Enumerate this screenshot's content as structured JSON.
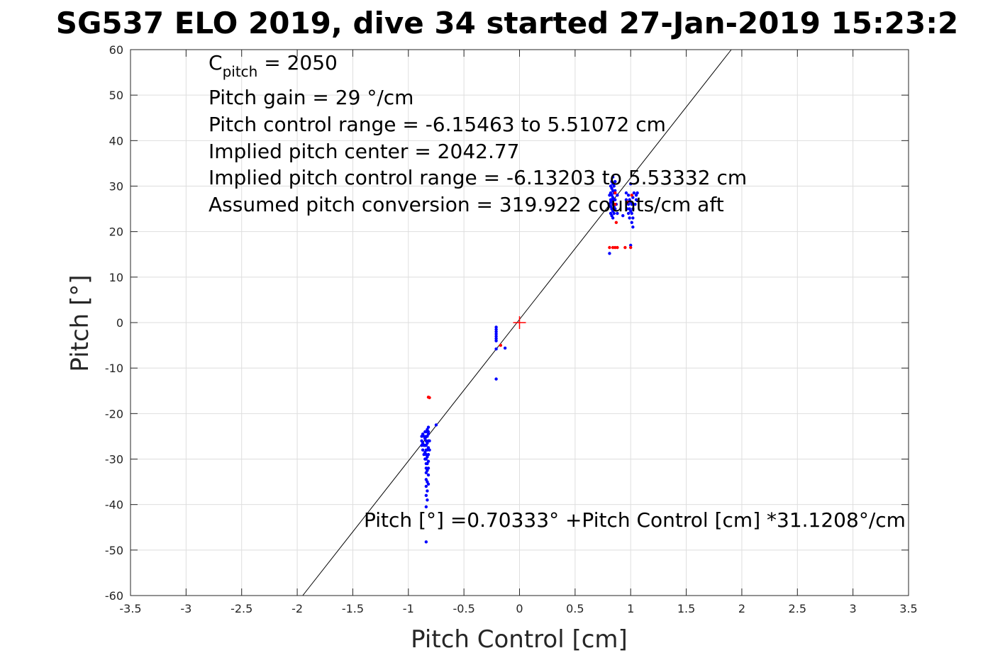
{
  "chart_data": {
    "type": "scatter",
    "title": "SG537 ELO 2019, dive 34 started 27-Jan-2019 15:23:2",
    "xlabel": "Pitch Control [cm]",
    "ylabel": "Pitch [°]",
    "xlim": [
      -3.5,
      3.5
    ],
    "ylim": [
      -60,
      60
    ],
    "x_ticks": [
      -3.5,
      -3,
      -2.5,
      -2,
      -1.5,
      -1,
      -0.5,
      0,
      0.5,
      1,
      1.5,
      2,
      2.5,
      3,
      3.5
    ],
    "x_tick_labels": [
      "-3.5",
      "-3",
      "-2.5",
      "-2",
      "-1.5",
      "-1",
      "-0.5",
      "0",
      "0.5",
      "1",
      "1.5",
      "2",
      "2.5",
      "3",
      "3.5"
    ],
    "y_ticks": [
      -60,
      -50,
      -40,
      -30,
      -20,
      -10,
      0,
      10,
      20,
      30,
      40,
      50,
      60
    ],
    "y_tick_labels": [
      "-60",
      "-50",
      "-40",
      "-30",
      "-20",
      "-10",
      "0",
      "10",
      "20",
      "30",
      "40",
      "50",
      "60"
    ],
    "grid": true,
    "annotations": {
      "c_pitch_base": "C",
      "c_pitch_sub": "pitch",
      "c_pitch_value": " = 2050",
      "pitch_gain": "Pitch gain = 29 °/cm",
      "control_range": "Pitch control range = -6.15463 to 5.51072 cm",
      "implied_center": "Implied pitch center = 2042.77",
      "implied_range": "Implied pitch control range = -6.13203 to 5.53332 cm",
      "assumed_conversion": "Assumed pitch conversion = 319.922 counts/cm aft",
      "fit_equation": "Pitch [°] =0.70333° +Pitch Control [cm] *31.1208°/cm"
    },
    "fit_line": {
      "intercept": 0.70333,
      "slope": 31.1208,
      "color": "#000000"
    },
    "center_marker": {
      "x": 0,
      "y": 0,
      "color": "#ff0000"
    },
    "series": [
      {
        "color": "#0000ff",
        "points": [
          [
            -0.88,
            -25
          ],
          [
            -0.88,
            -26
          ],
          [
            -0.88,
            -27
          ],
          [
            -0.87,
            -24.5
          ],
          [
            -0.87,
            -26.5
          ],
          [
            -0.87,
            -28
          ],
          [
            -0.86,
            -25
          ],
          [
            -0.86,
            -27
          ],
          [
            -0.86,
            -29
          ],
          [
            -0.85,
            -24
          ],
          [
            -0.85,
            -25.5
          ],
          [
            -0.85,
            -27
          ],
          [
            -0.85,
            -28.5
          ],
          [
            -0.85,
            -30
          ],
          [
            -0.84,
            -24
          ],
          [
            -0.84,
            -25
          ],
          [
            -0.84,
            -26
          ],
          [
            -0.84,
            -27
          ],
          [
            -0.84,
            -28
          ],
          [
            -0.84,
            -29
          ],
          [
            -0.84,
            -30
          ],
          [
            -0.84,
            -31
          ],
          [
            -0.84,
            -32
          ],
          [
            -0.84,
            -33
          ],
          [
            -0.84,
            -34.5
          ],
          [
            -0.84,
            -36
          ],
          [
            -0.84,
            -38
          ],
          [
            -0.84,
            -40.5
          ],
          [
            -0.84,
            -48.2
          ],
          [
            -0.83,
            -23.5
          ],
          [
            -0.83,
            -25
          ],
          [
            -0.83,
            -26.5
          ],
          [
            -0.83,
            -28
          ],
          [
            -0.83,
            -29.5
          ],
          [
            -0.83,
            -31
          ],
          [
            -0.83,
            -32.5
          ],
          [
            -0.83,
            -35
          ],
          [
            -0.83,
            -37
          ],
          [
            -0.83,
            -39
          ],
          [
            -0.82,
            -23
          ],
          [
            -0.82,
            -24.5
          ],
          [
            -0.82,
            -26
          ],
          [
            -0.82,
            -27.5
          ],
          [
            -0.82,
            -29
          ],
          [
            -0.82,
            -30.5
          ],
          [
            -0.82,
            -32
          ],
          [
            -0.82,
            -33.5
          ],
          [
            -0.82,
            -35.5
          ],
          [
            -0.82,
            -24
          ],
          [
            -0.81,
            -26
          ],
          [
            -0.81,
            -28
          ],
          [
            -0.75,
            -22.5
          ],
          [
            -0.21,
            -1
          ],
          [
            -0.21,
            -1.5
          ],
          [
            -0.21,
            -2
          ],
          [
            -0.21,
            -2.5
          ],
          [
            -0.21,
            -3
          ],
          [
            -0.21,
            -3.5
          ],
          [
            -0.21,
            -4
          ],
          [
            -0.21,
            -5.8
          ],
          [
            -0.21,
            -12.4
          ],
          [
            -0.13,
            -5.6
          ],
          [
            0.81,
            28
          ],
          [
            0.81,
            26
          ],
          [
            0.81,
            15.2
          ],
          [
            0.82,
            24
          ],
          [
            0.82,
            25.5
          ],
          [
            0.82,
            27
          ],
          [
            0.82,
            28.5
          ],
          [
            0.82,
            30
          ],
          [
            0.82,
            26.5
          ],
          [
            0.83,
            23.5
          ],
          [
            0.83,
            25
          ],
          [
            0.83,
            26.5
          ],
          [
            0.83,
            28
          ],
          [
            0.83,
            29.5
          ],
          [
            0.83,
            31
          ],
          [
            0.83,
            27
          ],
          [
            0.84,
            23
          ],
          [
            0.84,
            24.5
          ],
          [
            0.84,
            26
          ],
          [
            0.84,
            27.5
          ],
          [
            0.84,
            29
          ],
          [
            0.84,
            30.5
          ],
          [
            0.84,
            32
          ],
          [
            0.85,
            24
          ],
          [
            0.85,
            25.5
          ],
          [
            0.85,
            27
          ],
          [
            0.85,
            28.5
          ],
          [
            0.85,
            30
          ],
          [
            0.86,
            25
          ],
          [
            0.86,
            27
          ],
          [
            0.86,
            29
          ],
          [
            0.86,
            31
          ],
          [
            0.87,
            26
          ],
          [
            0.88,
            28
          ],
          [
            0.88,
            24
          ],
          [
            0.96,
            27
          ],
          [
            0.96,
            28.5
          ],
          [
            0.97,
            25
          ],
          [
            0.97,
            26.5
          ],
          [
            0.98,
            24
          ],
          [
            0.98,
            26
          ],
          [
            0.98,
            28
          ],
          [
            0.99,
            23
          ],
          [
            0.99,
            25
          ],
          [
            0.99,
            27
          ],
          [
            1.0,
            24.5
          ],
          [
            1.0,
            26.5
          ],
          [
            1.0,
            30.5
          ],
          [
            1.0,
            17
          ],
          [
            1.01,
            22
          ],
          [
            1.01,
            24
          ],
          [
            1.01,
            26
          ],
          [
            1.02,
            21
          ],
          [
            1.02,
            23
          ],
          [
            1.02,
            25
          ],
          [
            1.02,
            27.5
          ],
          [
            1.03,
            28.5
          ],
          [
            1.04,
            26
          ],
          [
            1.05,
            28
          ],
          [
            1.05,
            27
          ],
          [
            1.06,
            28.5
          ],
          [
            0.93,
            23.5
          ]
        ]
      },
      {
        "color": "#ff0000",
        "points": [
          [
            -0.81,
            -16.5
          ],
          [
            -0.82,
            -16.4
          ],
          [
            -0.17,
            -5
          ],
          [
            0.81,
            16.5
          ],
          [
            0.84,
            16.5
          ],
          [
            0.86,
            16.5
          ],
          [
            0.88,
            16.5
          ],
          [
            0.95,
            16.5
          ],
          [
            1.0,
            16.5
          ],
          [
            0.86,
            28.5
          ],
          [
            0.86,
            26
          ],
          [
            0.87,
            22
          ],
          [
            1.01,
            28
          ],
          [
            0.97,
            26.5
          ]
        ]
      }
    ]
  }
}
